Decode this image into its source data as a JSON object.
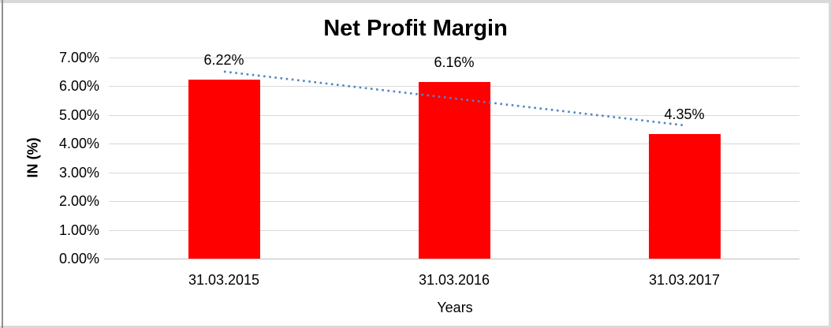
{
  "window": {
    "background": "#ffffff",
    "frame_border_color": "#d9d9d9",
    "frame_border_left_color": "#8f8f8f"
  },
  "chart_data": {
    "type": "bar",
    "title": "Net Profit Margin",
    "categories": [
      "31.03.2015",
      "31.03.2016",
      "31.03.2017"
    ],
    "values": [
      6.22,
      6.16,
      4.35
    ],
    "data_labels": [
      "6.22%",
      "6.16%",
      "4.35%"
    ],
    "xlabel": "Years",
    "ylabel": "IN (%)",
    "ylim": [
      0,
      7
    ],
    "ytick_step": 1,
    "ytick_labels": [
      "0.00%",
      "1.00%",
      "2.00%",
      "3.00%",
      "4.00%",
      "5.00%",
      "6.00%",
      "7.00%"
    ],
    "grid": true,
    "legend": "none",
    "bar_color": "#ff0000",
    "gridline_color": "#d9d9d9",
    "axis_line_color": "#bfbfbf",
    "text_color": "#000000",
    "trendline": {
      "type": "linear",
      "dotted": true,
      "color": "#4f86c5"
    }
  }
}
